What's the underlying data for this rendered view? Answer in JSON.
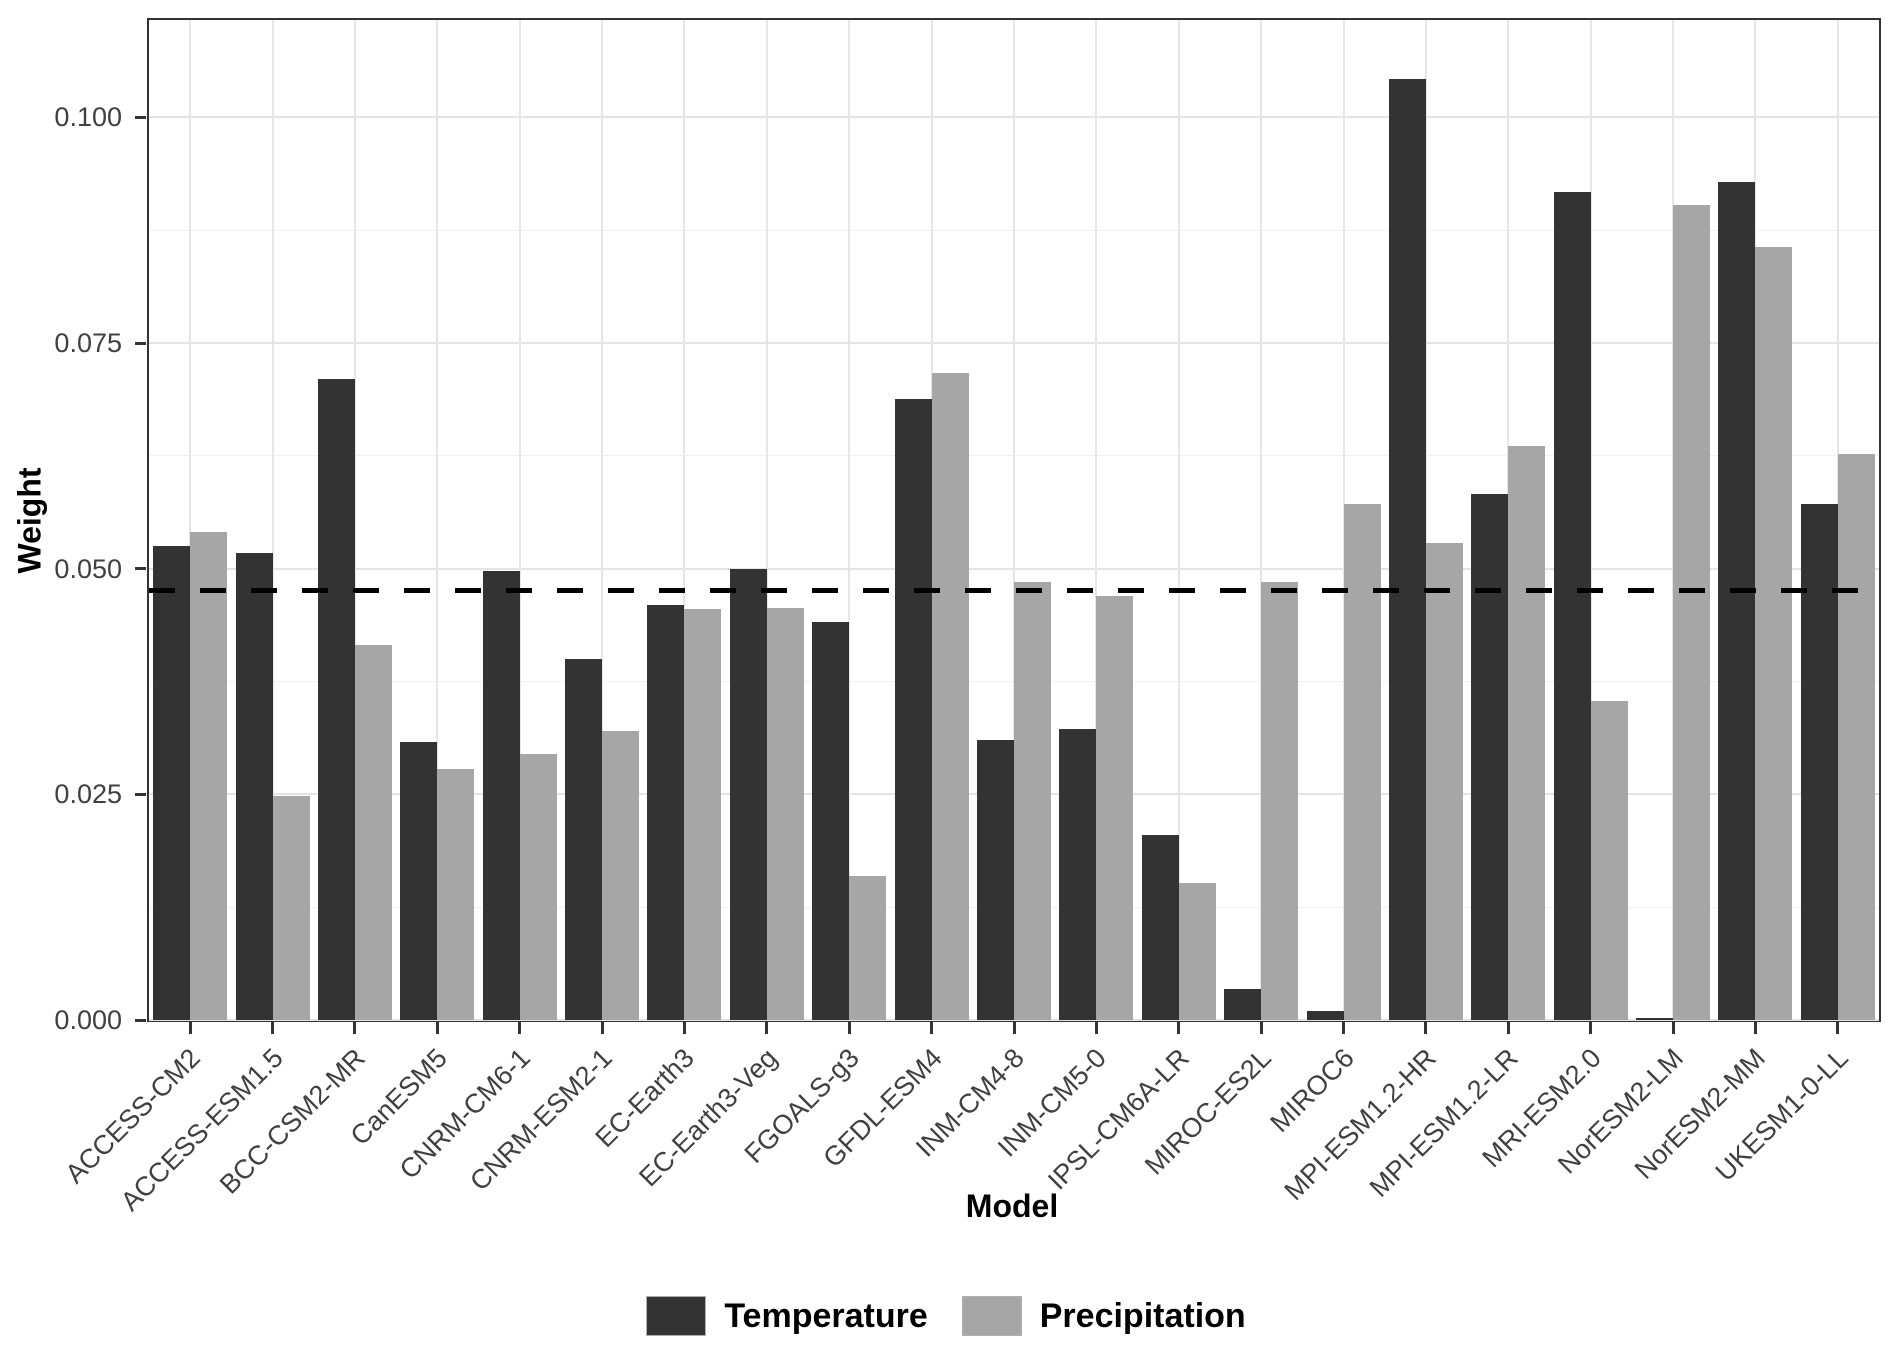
{
  "chart_data": {
    "type": "bar",
    "title": "",
    "xlabel": "Model",
    "ylabel": "Weight",
    "categories": [
      "ACCESS-CM2",
      "ACCESS-ESM1.5",
      "BCC-CSM2-MR",
      "CanESM5",
      "CNRM-CM6-1",
      "CNRM-ESM2-1",
      "EC-Earth3",
      "EC-Earth3-Veg",
      "FGOALS-g3",
      "GFDL-ESM4",
      "INM-CM4-8",
      "INM-CM5-0",
      "IPSL-CM6A-LR",
      "MIROC-ES2L",
      "MIROC6",
      "MPI-ESM1.2-HR",
      "MPI-ESM1.2-LR",
      "MRI-ESM2.0",
      "NorESM2-LM",
      "NorESM2-MM",
      "UKESM1-0-LL"
    ],
    "series": [
      {
        "name": "Temperature",
        "color": "#333333",
        "values": [
          0.0525,
          0.0517,
          0.071,
          0.0308,
          0.0497,
          0.04,
          0.046,
          0.05,
          0.0441,
          0.0688,
          0.031,
          0.0322,
          0.0205,
          0.0034,
          0.001,
          0.1043,
          0.0583,
          0.0917,
          0.0002,
          0.0928,
          0.0572
        ]
      },
      {
        "name": "Precipitation",
        "color": "#a6a6a6",
        "values": [
          0.0541,
          0.0248,
          0.0415,
          0.0278,
          0.0295,
          0.032,
          0.0455,
          0.0456,
          0.016,
          0.0717,
          0.0485,
          0.047,
          0.0152,
          0.0485,
          0.0572,
          0.0529,
          0.0636,
          0.0354,
          0.0903,
          0.0857,
          0.0627
        ]
      }
    ],
    "yticks": [
      0.0,
      0.025,
      0.05,
      0.075,
      0.1
    ],
    "ytick_labels": [
      "0.000",
      "0.025",
      "0.050",
      "0.075",
      "0.100"
    ],
    "ylim": [
      0,
      0.1108
    ],
    "minor_gridlines": [
      0.0125,
      0.0375,
      0.0625,
      0.0875
    ],
    "reference_line": {
      "value": 0.0476,
      "style": "dashed",
      "color": "#000000"
    },
    "legend_position": "bottom",
    "grid": true
  },
  "axes": {
    "x_title": "Model",
    "y_title": "Weight"
  },
  "legend": {
    "items": [
      {
        "label": "Temperature",
        "color": "#333333"
      },
      {
        "label": "Precipitation",
        "color": "#a6a6a6"
      }
    ]
  }
}
